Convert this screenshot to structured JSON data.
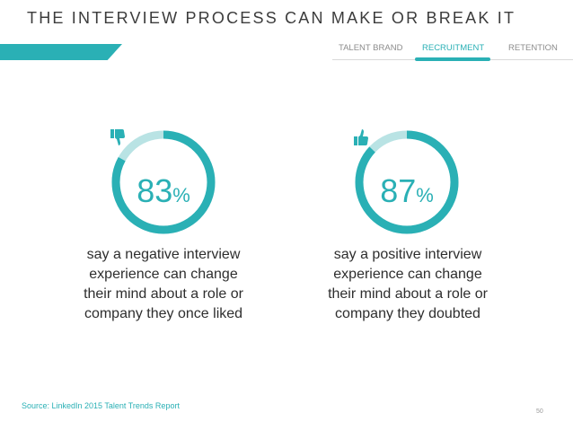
{
  "header": {
    "title": "THE INTERVIEW PROCESS CAN MAKE OR BREAK IT",
    "accent_color": "#2ab0b5"
  },
  "nav": {
    "items": [
      {
        "label": "TALENT BRAND",
        "active": false
      },
      {
        "label": "RECRUITMENT",
        "active": true
      },
      {
        "label": "RETENTION",
        "active": false
      }
    ]
  },
  "stats": [
    {
      "value_text": "83",
      "symbol": "%",
      "fraction": 0.83,
      "icon": "thumbs-down-icon",
      "lines": [
        "say a negative interview",
        "experience can change",
        "their mind about a role or",
        "company they once liked"
      ]
    },
    {
      "value_text": "87",
      "symbol": "%",
      "fraction": 0.87,
      "icon": "thumbs-up-icon",
      "lines": [
        "say a positive interview",
        "experience can change",
        "their mind about a role or",
        "company they doubted"
      ]
    }
  ],
  "footer": {
    "source": "Source: LinkedIn 2015 Talent Trends Report",
    "page_number": "50"
  },
  "colors": {
    "ring": "#2ab0b5",
    "ring_track": "#b9e3e4"
  }
}
